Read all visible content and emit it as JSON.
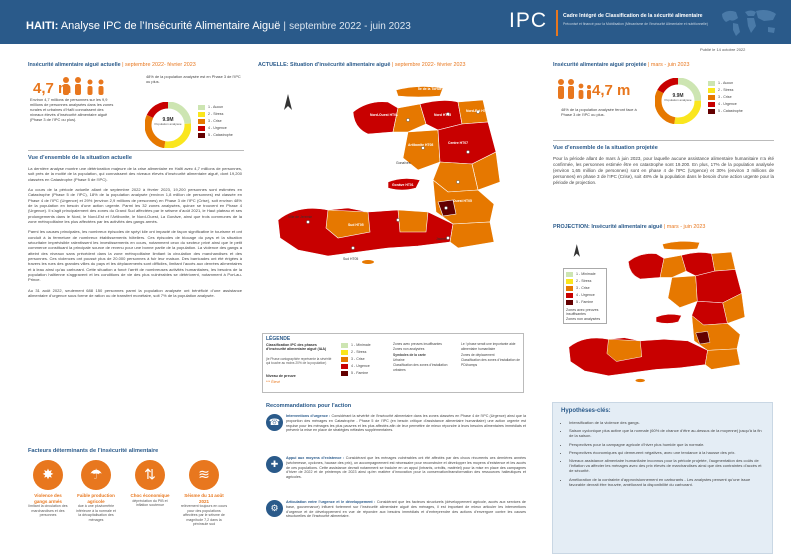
{
  "header": {
    "title_bold": "HAITI:",
    "title_main": "Analyse IPC de l’Insécurité Alimentaire Aiguë",
    "title_sep": "|",
    "title_period": "septembre 2022 - juin 2023",
    "logo": "IPC",
    "org_name": "Cadre Intégré de Classification de la sécurité alimentaire",
    "org_sub": "Préconisé et financé pour la Mobilisation (Mécanisme de l’Insécurité Alimentaire et nutritionnelle)"
  },
  "published": "Publié le 14 octobre 2022",
  "left": {
    "current_title": "Insécurité alimentaire aiguë actuelle",
    "current_period": "septembre 2022- février 2023",
    "stat": "4,7 m",
    "stat_text": "Environ 4,7 millions de personnes sur les 9,9 millions de personnes analysées dans les zones rurales et urbaines d’Haïti connaissent des niveaux élevés d’insécurité alimentaire aiguë (Phase 3 de l’IPC ou plus).",
    "pie_label": "48% de la population analysée est en Phase 3 de l’IPC ou plus.",
    "pie_center": "9.9M",
    "pie_center_sub": "Population analysée",
    "overview_title": "Vue d’ensemble de la situation actuelle",
    "p1": "La dernière analyse montre une détérioration majeure de la crise alimentaire en Haïti avec 4,7 millions de personnes, soit près de la moitié de la population, qui connaissent des niveaux élevés d’insécurité alimentaire aiguë, dont 19,200 classées en Catastrophe (Phase 5 de l’IPC).",
    "p2": "Au cours de la période actuelle allant de septembre 2022 à février 2023, 19,200 personnes sont estimées en Catastrophe (Phase 5 de l’IPC), 18% de la population analysée (environ 1,8 million de personnes) est classée en Phase 4 de l’IPC (Urgence) et 29% (environ 2,9 millions de personnes) en Phase 3 de l’IPC (Crise), soit environ 48% de la population en besoin d’une action urgente. Parmi les 32 zones analysées, quinze se trouvent en Phase 4 (Urgence). Il s’agit principalement des zones du Grand Sud affectées par le séisme d’août 2021, le Haut plateau et ses prolongements dans le Nord, le Nord-Est et l’Artibonite, le Nord-Ouest, La Gonâve, ainsi que trois communes de la zone métropolitaine les plus affectées par les activités des gangs armés.",
    "p3": "Parmi les causes principales, les nombreux épisodes de spéyi kile ont impacté de façon significative le tourisme et ont conduit à la fermeture de nombreux établissements hôteliers. Ces épisodes de blocage du pays et la situation sécuritaire imprévisible ralentissent les investissements en cours, notamment ceux du secteur privé ainsi que le petit commerce constituant la principale source de revenu pour une bonne partie de la population. La violence des gangs a atteint des niveaux sans précédent dans la zone métropolitaine limitant la circulation des marchandises et des personnes. Ces violences ont poussé plus de 20.000 personnes à fuir leur maison. Des barricades ont été érigées à travers les rues des grandes villes du pays et les déplacements sont difficiles, limitant l’accès aux denrées alimentaires et à leau ainsi qu’au carburant. Cette situation a forcé l’arrêt de nombreuses activités humanitaires, les besoins de la population haïtienne s’aggravent et les conditions de vie des plus vulnérables se détériorent, notamment à Port-au-Prince.",
    "p4": "Au 31 août 2022, seulement 688 150 personnes parmi la population analysée ont bénéficié d’une assistance alimentaire d’urgence sous forme de ration ou de transfert monétaire, soit 7% de la population analysée.",
    "factors_title": "Facteurs déterminants de l’insécurité alimentaire",
    "factors": [
      {
        "icon": "✸",
        "title": "Violence des gangs armés",
        "text": "limitant la circulation des marchandises et des personnes"
      },
      {
        "icon": "☂",
        "title": "Faible production agricole",
        "text": "due à une pluviométrie inférieure à la normale et la décapitalisation des ménages"
      },
      {
        "icon": "⇅",
        "title": "Choc économique",
        "text": "dépréciation du PIB et inflation soutenue"
      },
      {
        "icon": "≋",
        "title": "Séisme du 14 août 2021",
        "text": "relèvement toujours en cours pour des populations affectées par le séisme de magnitude 7,2 dans la péninsule sud"
      }
    ]
  },
  "legend": [
    {
      "label": "1 - Minimale",
      "color": "#cde5b2"
    },
    {
      "label": "2 - Stress",
      "color": "#fae61e"
    },
    {
      "label": "3 - Crise",
      "color": "#e67800"
    },
    {
      "label": "4 - Urgence",
      "color": "#c80000"
    },
    {
      "label": "5 - Famine",
      "color": "#640000"
    }
  ],
  "pie_legend": [
    {
      "label": "1 - Aucun",
      "color": "#cde5b2"
    },
    {
      "label": "2 - Stress",
      "color": "#fae61e"
    },
    {
      "label": "3 - Crise",
      "color": "#e67800"
    },
    {
      "label": "4 - Urgence",
      "color": "#c80000"
    },
    {
      "label": "5 - Catastrophe",
      "color": "#640000"
    }
  ],
  "map1": {
    "title": "ACTUELLE: Situation d’insécurité alimentaire aiguë",
    "period": "septembre 2022- février 2023",
    "cities": [
      "Môle Saint-Nicolas",
      "Port-de-Paix",
      "Cap-Haïtien",
      "Fort-Liberté",
      "Gonaïves",
      "Hinche",
      "Mirebalais",
      "Port-au-Prince",
      "Jérémie",
      "Les Cayes",
      "Jacmel",
      "Miragoâne",
      "Ville de Jeremie",
      "Sud HT05",
      "Artibonite HT08",
      "Nord Est HT02",
      "Centre HT07",
      "Ouest HT05",
      "Gonâve HT01"
    ],
    "legend_title": "LÉGENDE",
    "legend_sub": "Classification IPC des phases d’insécurité alimentaire aiguë (IAA)",
    "legend_note": "(le Phase cartographiée représente la sévérité qui touche au moins 20% de la population)",
    "legend_level": "Niveau de preuve",
    "legend_level_val": "*** Élevé",
    "extra_legend": [
      "Zones avec preuves insuffisantes",
      "Zones non analysées",
      "Symboles de la carte",
      "Urbaine",
      "Classification des zones d’installation urbaines",
      "Zones de déplacement",
      "Classification des zones d’installation de PDI/camps"
    ],
    "humanitarian_note": "Le ! phase serait une importante aide alimentaire humanitaire"
  },
  "reco": {
    "title": "Recommandations pour l’action",
    "items": [
      {
        "icon": "☎",
        "bold": "Interventions d’urgence :",
        "text": "Considérant la sévérité de l’insécurité alimentaire dans les zones classées en Phase 4 de l’IPC (Urgence) ainsi que la proportion des ménages en Catastrophe - Phase 5 de l’IPC (en besoin critique d’assistance alimentaire humanitaire) une action urgente est requise pour les ménages les plus pauvres et les plus affectés afin de leur permettre de mieux répondre à leurs besoins alimentaires immédiats et prévenir la mise en place de stratégies néfastes supplémentaires."
      },
      {
        "icon": "✚",
        "bold": "Appui aux moyens d’existence :",
        "text": "Considérant que les ménages vulnérables ont été affectés par des chocs récurrents ces dernières années (sécheresse, cyclones, hausse des prix), un accompagnement est nécessaire pour reconstruire et développer les moyens d’existence et les accès de ces populations. Cette assistance devrait notamment se traduire en un appui (intrants, crédits, matériel) pour la mise en place des campagnes d’hiver de 2022 et de printemps de 2023 ainsi qu’en matière d’innovation pour la conservation/transformation des ressources halieutiques et agricoles."
      },
      {
        "icon": "⚙",
        "bold": "Articulation entre l’urgence et le développement :",
        "text": "Considérant que les facteurs structurels (développement agricole, accès aux services de base, gouvernance) influent fortement sur l’insécurité alimentaire aiguë des ménages, il est important de mieux articuler les interventions d’urgence et de développement en vue de répondre aux besoins immédiats et d’entreprendre des actions d’envergure contre les causes structurelles de l’insécurité alimentaire."
      }
    ]
  },
  "right": {
    "proj_title": "Insécurité alimentaire aiguë projetée",
    "proj_period": "mars - juin 2023",
    "stat": "4,7 m",
    "stat_text": "48% de la population analysée feront face à Phase 3 de l’IPC ou plus.",
    "pie_center": "9.9M",
    "pie_center_sub": "Population analysée",
    "overview_title": "Vue d’ensemble de la situation projetée",
    "p1": "Pour la période allant de mars à juin 2023, pour laquelle aucune assistance alimentaire humanitaire n’a été confirmée, les personnes estimée être en catastrophe sont 19.200. En plus, 17% de la population analysée (environ 1,65 million de personnes) sont en phase 4 de l’IPC (Urgence) et 30% (environ 3 millions de personnes) en phase 3 de l’IPC (Crise), soit 48% de la population dans le besoin d’une action urgente pour la période de projection.",
    "proj_map_title": "PROJECTION: Insécurité alimentaire aiguë",
    "proj_map_period": "mars - juin 2023",
    "proj_legend": [
      "1 - Minimale",
      "2 - Stress",
      "3 - Crise",
      "4 - Urgence",
      "5 - Famine",
      "Zones avec preuves insuffisantes",
      "Zones non analysées"
    ],
    "hyp_title": "Hypothèses-clés:",
    "hyp": [
      "Intensification de la violence des gangs.",
      "Saison cyclonique plus active que la normale (60% de chance d’être au-dessus de la moyenne) jusqu’à la fin de la saison.",
      "Perspectives pour la campagne agricole d’hiver plus humide que la normale.",
      "Perspectives économiques qui demeurent négatives, avec une tendance à la hausse des prix.",
      "Niveaux assistance alimentaire humanitaire inconnus pour la période projetée, l’augmentation des coûts de l’inflation va affecter les ménages avec des prix élevés de marchandises ainsi que des contraintes d’accès et de sécurité.",
      "Amélioration de la contrainte d’approvisionnement en carburants - Les analystes pensent qu’une issue favorable devrait être trouvée, améliorant la disponibilité du carburant."
    ]
  }
}
